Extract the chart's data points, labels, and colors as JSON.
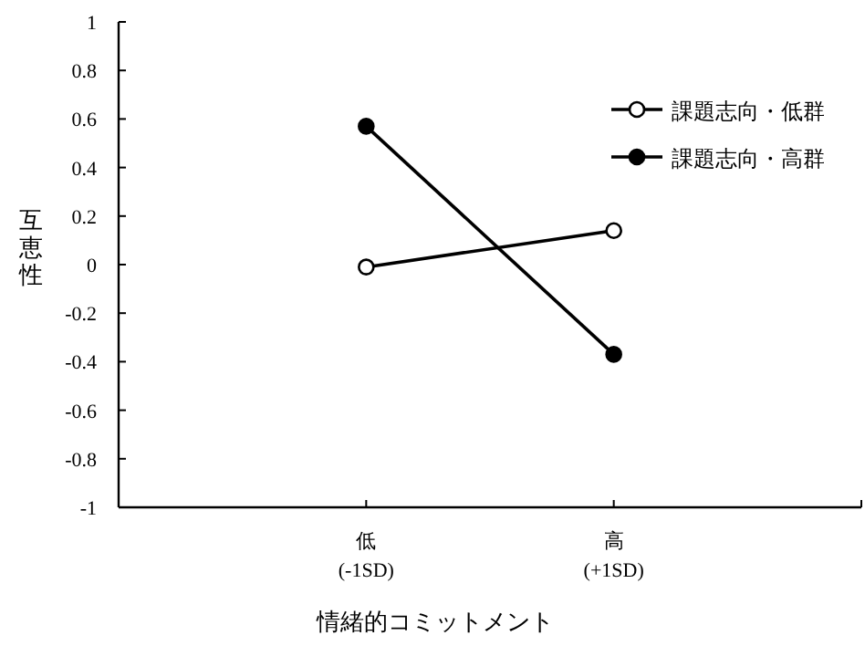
{
  "chart_data": {
    "type": "line",
    "xlabel": "情緒的コミットメント",
    "ylabel": "互恵性",
    "categories": [
      "低\n(-1SD)",
      "高\n(+1SD)",
      null
    ],
    "series": [
      {
        "name": "課題志向・低群",
        "color": "#000000",
        "marker": "circle",
        "values": [
          -0.01,
          0.14,
          null
        ]
      },
      {
        "name": "課題志向・高群",
        "color": "#000000",
        "marker": "circle",
        "values": [
          0.57,
          -0.37,
          null
        ]
      }
    ],
    "ylim": [
      -1,
      1
    ],
    "yticks": [
      1,
      0.8,
      0.6,
      0.4,
      0.2,
      0,
      -0.2,
      -0.4,
      -0.6,
      -0.8,
      -1
    ],
    "grid": false,
    "legend": "top right",
    "line_style": "solid"
  }
}
